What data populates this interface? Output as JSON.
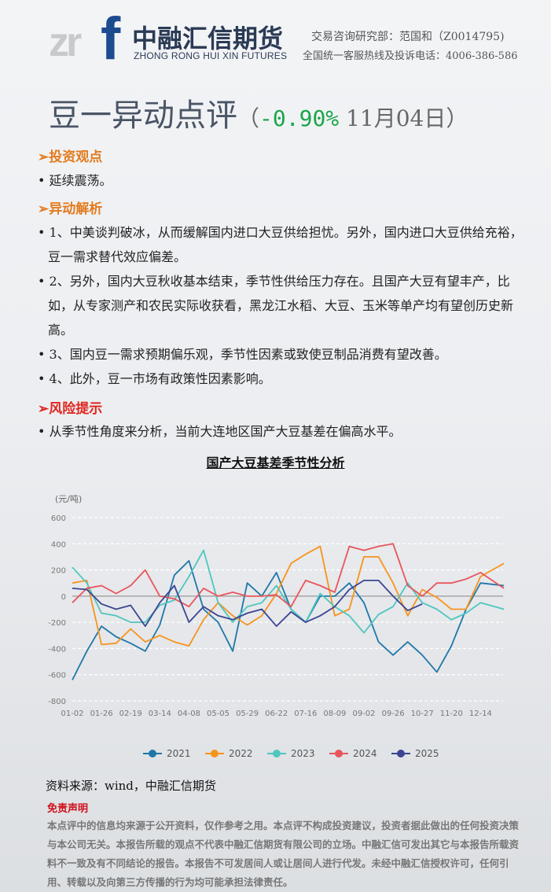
{
  "header": {
    "logo_mark": "zrf",
    "logo_cn": "中融汇信期货",
    "logo_en": "ZHONG RONG HUI XIN FUTURES",
    "contact_line1": "交易咨询研究部：范国和（Z0014795)",
    "contact_line2": "全国统一客服热线及投诉电话：4006-386-586"
  },
  "title": {
    "main": "豆一异动点评",
    "open": "（",
    "change": "-0.90%",
    "date": " 11月04日",
    "close": "）",
    "change_color": "#1aa64a"
  },
  "sections": [
    {
      "heading": "➢投资观点",
      "items": [
        "• 延续震荡。"
      ]
    },
    {
      "heading": "➢异动解析",
      "items": [
        "• 1、中美谈判破冰，从而缓解国内进口大豆供给担忧。另外，国内进口大豆供给充裕，豆一需求替代效应偏差。",
        "• 2、另外，国内大豆秋收基本结束，季节性供给压力存在。且国产大豆有望丰产，比如，从专家测产和农民实际收获看，黑龙江水稻、大豆、玉米等单产均有望创历史新高。",
        "• 3、国内豆一需求预期偏乐观，季节性因素或致使豆制品消费有望改善。",
        "• 4、此外，豆一市场有政策性因素影响。"
      ]
    },
    {
      "heading": "➢风险提示",
      "items": [
        "• 从季节性角度来分析，当前大连地区国产大豆基差在偏高水平。"
      ]
    }
  ],
  "chart_data": {
    "type": "line",
    "title": "国产大豆基差季节性分析",
    "ylabel": "(元/吨)",
    "ylim": [
      -800,
      600
    ],
    "yticks": [
      600,
      400,
      200,
      0,
      -200,
      -400,
      -600,
      -800
    ],
    "xticks": [
      "01-02",
      "01-26",
      "02-19",
      "03-14",
      "04-08",
      "05-05",
      "05-29",
      "06-22",
      "07-16",
      "08-09",
      "09-02",
      "09-26",
      "10-27",
      "11-20",
      "12-14"
    ],
    "grid": "horizontal dashed",
    "legend": "bottom",
    "samples_per_tick": 2,
    "series": [
      {
        "name": "2021",
        "color": "#1f77a8",
        "values": [
          -640,
          -420,
          -230,
          -310,
          -360,
          -420,
          -220,
          160,
          270,
          -100,
          -200,
          -420,
          100,
          0,
          180,
          -100,
          -200,
          0,
          0,
          100,
          -50,
          -350,
          -450,
          -350,
          -450,
          -580,
          -380,
          -100,
          100,
          80
        ]
      },
      {
        "name": "2022",
        "color": "#f7941d",
        "values": [
          100,
          120,
          -370,
          -360,
          -250,
          -350,
          -300,
          -350,
          -380,
          -180,
          -50,
          -150,
          -220,
          -150,
          20,
          250,
          320,
          380,
          -150,
          -100,
          300,
          300,
          100,
          -150,
          50,
          -10,
          -100,
          -100,
          150,
          250
        ]
      },
      {
        "name": "2023",
        "color": "#4fc6c0",
        "values": [
          220,
          100,
          -130,
          -150,
          -200,
          -200,
          -70,
          -30,
          150,
          350,
          -50,
          -200,
          -80,
          -50,
          80,
          -100,
          -200,
          20,
          -80,
          -150,
          -280,
          -140,
          -80,
          100,
          -50,
          -100,
          -180,
          -130,
          -50,
          -100
        ]
      },
      {
        "name": "2024",
        "color": "#e8555a",
        "values": [
          -50,
          60,
          80,
          20,
          80,
          200,
          0,
          -20,
          -80,
          60,
          0,
          30,
          0,
          0,
          10,
          -80,
          120,
          80,
          30,
          380,
          350,
          380,
          400,
          80,
          0,
          100,
          100,
          130,
          180,
          60
        ]
      },
      {
        "name": "2025",
        "color": "#3c4592",
        "values": [
          60,
          50,
          -60,
          -100,
          -70,
          -230,
          -50,
          80,
          -200,
          -80,
          -150,
          -180,
          -130,
          -100,
          -230,
          -120,
          -200,
          -150,
          -80,
          50,
          120,
          120,
          0,
          -110,
          -60
        ]
      }
    ]
  },
  "footer": {
    "source": "资料来源：wind，中融汇信期货",
    "disclaimer_heading": "免责声明",
    "disclaimer": "本点评中的信息均来源于公开资料，仅作参考之用。本点评不构成投资建议，投资者据此做出的任何投资决策与本公司无关。本报告所载的观点不代表中融汇信期货有限公司的立场。中融汇信可发出其它与本报告所载资料不一致及有不同结论的报告。本报告不可发居间人或让居间人进行代发。未经中融汇信授权许可，任何引用、转载以及向第三方传播的行为均可能承担法律责任。"
  }
}
